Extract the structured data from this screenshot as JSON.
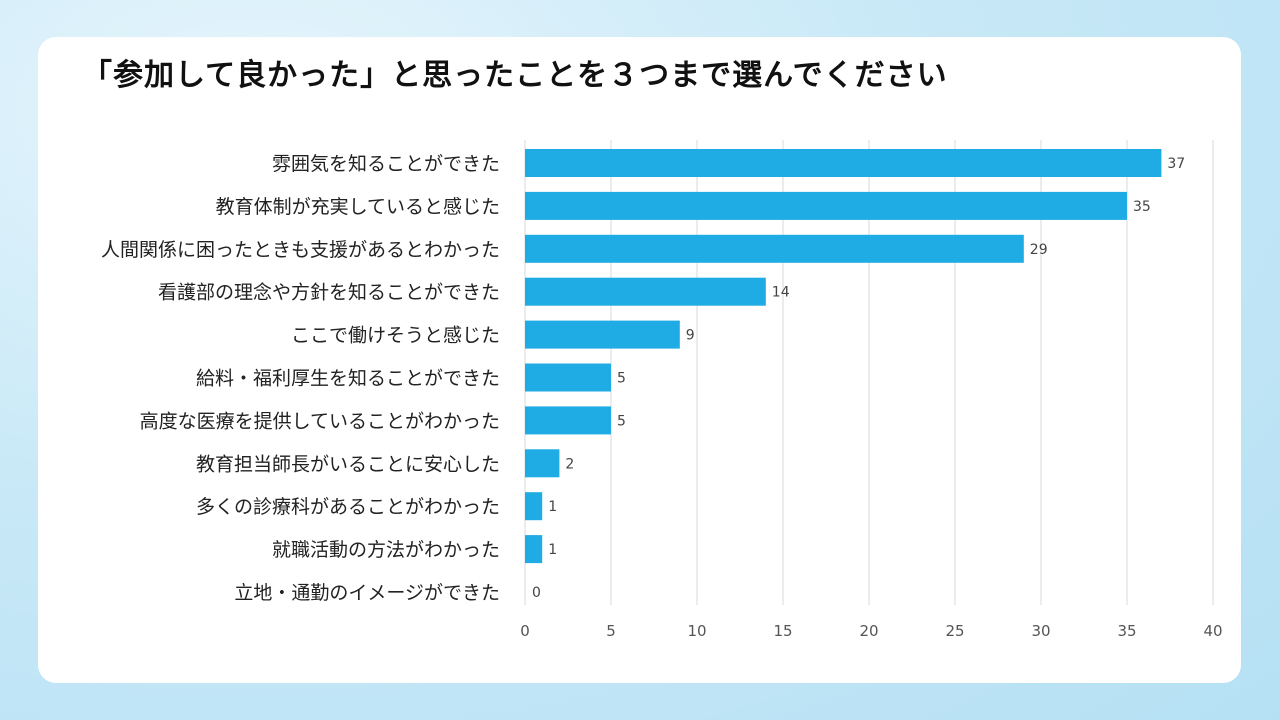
{
  "title": "「参加して良かった」と思ったことを３つまで選んでください",
  "colors": {
    "bar": "#1fabe3",
    "grid": "#d9d9d9",
    "card": "#ffffff"
  },
  "chart_data": {
    "type": "bar",
    "orientation": "horizontal",
    "categories": [
      "雰囲気を知ることができた",
      "教育体制が充実していると感じた",
      "人間関係に困ったときも支援があるとわかった",
      "看護部の理念や方針を知ることができた",
      "ここで働けそうと感じた",
      "給料・福利厚生を知ることができた",
      "高度な医療を提供していることがわかった",
      "教育担当師長がいることに安心した",
      "多くの診療科があることがわかった",
      "就職活動の方法がわかった",
      "立地・通勤のイメージができた"
    ],
    "values": [
      37,
      35,
      29,
      14,
      9,
      5,
      5,
      2,
      1,
      1,
      0
    ],
    "xlim": [
      0,
      40
    ],
    "xticks": [
      0,
      5,
      10,
      15,
      20,
      25,
      30,
      35,
      40
    ],
    "grid": "vertical",
    "data_labels": true,
    "legend": "none"
  }
}
